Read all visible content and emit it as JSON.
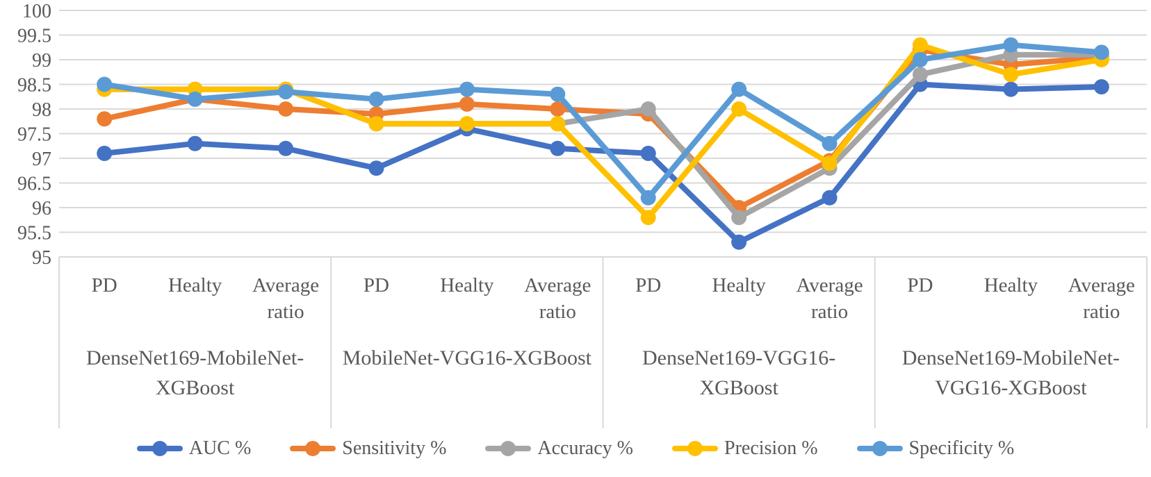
{
  "chart_data": {
    "type": "line",
    "title": "",
    "xlabel": "",
    "ylabel": "",
    "y_axis": {
      "min": 95,
      "max": 100,
      "step": 0.5,
      "tick_labels": [
        "100",
        "99.5",
        "99",
        "98.5",
        "98",
        "97.5",
        "97",
        "96.5",
        "96",
        "95.5",
        "95"
      ]
    },
    "x_point_labels": [
      "PD",
      "Healty",
      "Average ratio"
    ],
    "groups": [
      {
        "label": "DenseNet169-MobileNet-XGBoost",
        "label_lines": [
          "DenseNet169-MobileNet-",
          "XGBoost"
        ]
      },
      {
        "label": "MobileNet-VGG16-XGBoost",
        "label_lines": [
          "MobileNet-VGG16-XGBoost"
        ]
      },
      {
        "label": "DenseNet169-VGG16-XGBoost",
        "label_lines": [
          "DenseNet169-VGG16-",
          "XGBoost"
        ]
      },
      {
        "label": "DenseNet169-MobileNet-VGG16-XGBoost",
        "label_lines": [
          "DenseNet169-MobileNet-",
          "VGG16-XGBoost"
        ]
      }
    ],
    "series": [
      {
        "name": "AUC %",
        "color": "#4472C4",
        "values": [
          97.1,
          97.3,
          97.2,
          96.8,
          97.6,
          97.2,
          97.1,
          95.3,
          96.2,
          98.5,
          98.4,
          98.45
        ]
      },
      {
        "name": "Sensitivity %",
        "color": "#ED7D31",
        "values": [
          97.8,
          98.2,
          98.0,
          97.9,
          98.1,
          98.0,
          97.9,
          96.0,
          96.95,
          99.2,
          98.9,
          99.05
        ]
      },
      {
        "name": "Accuracy %",
        "color": "#A5A5A5",
        "values": [
          98.4,
          98.4,
          98.4,
          97.7,
          97.7,
          97.7,
          98.0,
          95.8,
          96.8,
          98.7,
          99.1,
          99.1
        ]
      },
      {
        "name": "Precision %",
        "color": "#FFC000",
        "values": [
          98.4,
          98.4,
          98.4,
          97.7,
          97.7,
          97.7,
          95.8,
          98.0,
          96.9,
          99.3,
          98.7,
          99.0
        ]
      },
      {
        "name": "Specificity %",
        "color": "#5B9BD5",
        "values": [
          98.5,
          98.2,
          98.35,
          98.2,
          98.4,
          98.3,
          96.2,
          98.4,
          97.3,
          99.0,
          99.3,
          99.15
        ]
      }
    ],
    "legend_position": "bottom",
    "grid": true,
    "grid_color": "#D9D9D9",
    "text_color": "#595959"
  }
}
